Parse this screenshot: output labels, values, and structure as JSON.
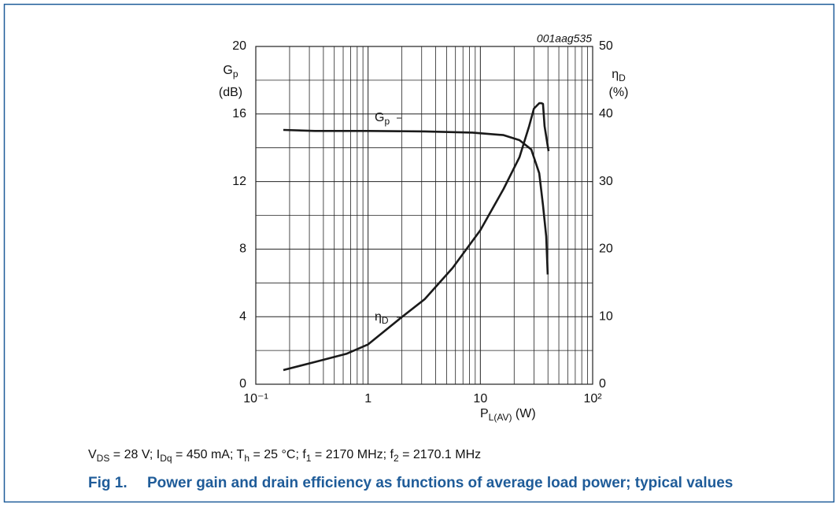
{
  "chart_data": {
    "type": "line",
    "annotation": "001aag535",
    "y_label": [
      "G",
      "p"
    ],
    "y_unit": "(dB)",
    "y2_label": [
      "η",
      "D"
    ],
    "y2_unit": "(%)",
    "x_label": [
      "P",
      "L(AV)",
      " (W)"
    ],
    "log_x": true,
    "grid": true,
    "xlim": [
      0.1,
      100
    ],
    "xticks": [
      {
        "value": 0.1,
        "label": "10⁻¹"
      },
      1,
      10,
      {
        "value": 100,
        "label": "10²"
      }
    ],
    "xminor": [
      0.2,
      0.3,
      0.4,
      0.5,
      0.6,
      0.7,
      0.8,
      0.9,
      2,
      3,
      4,
      5,
      6,
      7,
      8,
      9,
      20,
      30,
      40,
      50,
      60,
      70,
      80,
      90
    ],
    "ylim": [
      0,
      20
    ],
    "yticks": [
      0,
      4,
      8,
      12,
      16,
      20
    ],
    "yminor": [
      2,
      6,
      10,
      14,
      18
    ],
    "y2lim": [
      0,
      50
    ],
    "y2ticks": [
      0,
      10,
      20,
      30,
      40,
      50
    ],
    "color": "#1a1a1a",
    "series": [
      {
        "label": [
          "G",
          "p"
        ],
        "axis": "y",
        "x": [
          0.176,
          0.336,
          1.0,
          3.2,
          8.5,
          16.1,
          22.3,
          28.4,
          33.4,
          36.1,
          38.6,
          39.8
        ],
        "values": [
          15.06,
          15.0,
          15.0,
          14.97,
          14.9,
          14.75,
          14.45,
          13.9,
          12.5,
          10.6,
          8.75,
          6.5
        ]
      },
      {
        "label": [
          "η",
          "D"
        ],
        "axis": "y2",
        "x": [
          0.176,
          0.336,
          0.64,
          1.0,
          1.98,
          3.2,
          5.65,
          10,
          16.1,
          22.3,
          27.2,
          30.0,
          33.4,
          35,
          36.1,
          37.3,
          40.5
        ],
        "values": [
          2.1,
          3.3,
          4.5,
          5.9,
          9.9,
          12.6,
          17.2,
          22.8,
          28.9,
          33.6,
          38.2,
          40.8,
          41.6,
          41.6,
          41.5,
          38.2,
          34.5
        ]
      }
    ]
  },
  "conditions": [
    "V",
    "DS",
    " = 28 V; I",
    "Dq",
    " = 450 mA; T",
    "h",
    " = 25 °C; f",
    "1",
    " = 2170 MHz; f",
    "2",
    " = 2170.1 MHz"
  ],
  "caption": {
    "number": "Fig 1.",
    "text": "Power gain and drain efficiency as functions of average load power; typical values"
  }
}
